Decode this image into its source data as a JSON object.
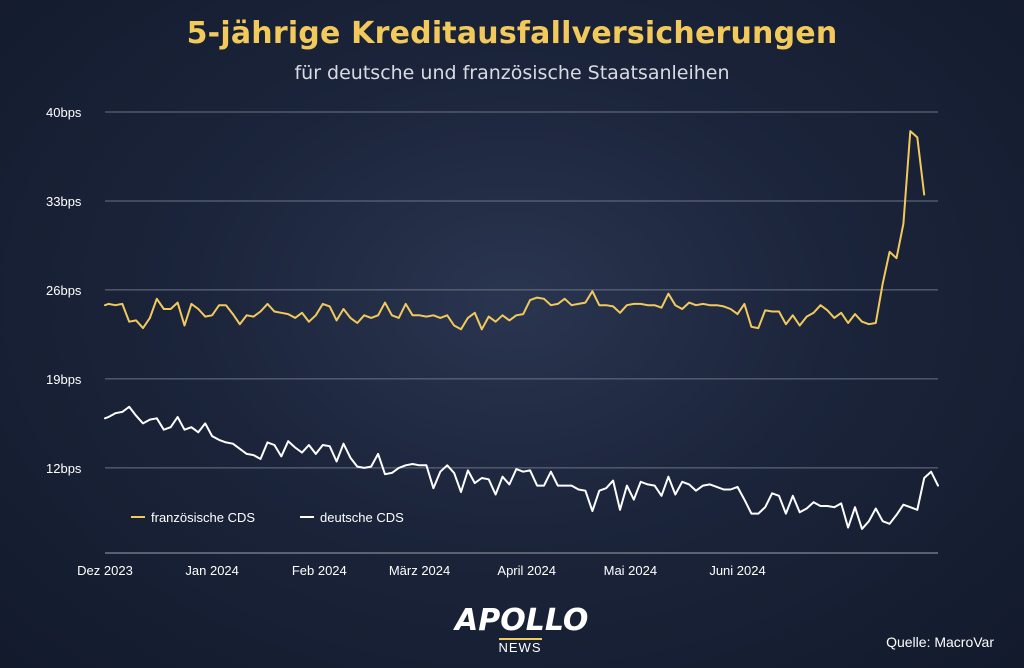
{
  "chart_data": {
    "type": "line",
    "title": "5-jährige Kreditausfallversicherungen",
    "subtitle": "für deutsche und französische Staatsanleihen",
    "x_start": "2023-12-01",
    "x_end": "2024-06-28",
    "x_ticks": [
      {
        "label": "Dez 2023",
        "date": "2023-12-01"
      },
      {
        "label": "Jan 2024",
        "date": "2024-01-01"
      },
      {
        "label": "Feb 2024",
        "date": "2024-02-01"
      },
      {
        "label": "März 2024",
        "date": "2024-03-01"
      },
      {
        "label": "April 2024",
        "date": "2024-04-01"
      },
      {
        "label": "Mai 2024",
        "date": "2024-05-01"
      },
      {
        "label": "Juni 2024",
        "date": "2024-06-01"
      }
    ],
    "y_ticks": [
      {
        "label": "12bps",
        "value": 12
      },
      {
        "label": "19bps",
        "value": 19
      },
      {
        "label": "26bps",
        "value": 26
      },
      {
        "label": "33bps",
        "value": 33
      },
      {
        "label": "40bps",
        "value": 40
      }
    ],
    "ylim": [
      5.3,
      40
    ],
    "grid": true,
    "legend_position": "bottom-left",
    "series": [
      {
        "name": "französische CDS",
        "color": "#f2c95b",
        "values": [
          [
            "2023-12-01",
            24.8
          ],
          [
            "2023-12-02",
            24.9
          ],
          [
            "2023-12-04",
            24.8
          ],
          [
            "2023-12-06",
            24.9
          ],
          [
            "2023-12-08",
            23.5
          ],
          [
            "2023-12-10",
            23.6
          ],
          [
            "2023-12-12",
            23.0
          ],
          [
            "2023-12-14",
            23.8
          ],
          [
            "2023-12-16",
            25.3
          ],
          [
            "2023-12-18",
            24.5
          ],
          [
            "2023-12-20",
            24.5
          ],
          [
            "2023-12-22",
            25.0
          ],
          [
            "2023-12-24",
            23.2
          ],
          [
            "2023-12-26",
            24.9
          ],
          [
            "2023-12-28",
            24.5
          ],
          [
            "2023-12-30",
            23.9
          ],
          [
            "2024-01-01",
            24.0
          ],
          [
            "2024-01-03",
            24.8
          ],
          [
            "2024-01-05",
            24.8
          ],
          [
            "2024-01-07",
            24.1
          ],
          [
            "2024-01-09",
            23.3
          ],
          [
            "2024-01-11",
            24.0
          ],
          [
            "2024-01-13",
            23.9
          ],
          [
            "2024-01-15",
            24.3
          ],
          [
            "2024-01-17",
            24.9
          ],
          [
            "2024-01-19",
            24.3
          ],
          [
            "2024-01-21",
            24.2
          ],
          [
            "2024-01-23",
            24.1
          ],
          [
            "2024-01-25",
            23.8
          ],
          [
            "2024-01-27",
            24.2
          ],
          [
            "2024-01-29",
            23.5
          ],
          [
            "2024-01-31",
            24.0
          ],
          [
            "2024-02-02",
            24.9
          ],
          [
            "2024-02-04",
            24.7
          ],
          [
            "2024-02-06",
            23.6
          ],
          [
            "2024-02-08",
            24.5
          ],
          [
            "2024-02-10",
            23.8
          ],
          [
            "2024-02-12",
            23.4
          ],
          [
            "2024-02-14",
            24.0
          ],
          [
            "2024-02-16",
            23.8
          ],
          [
            "2024-02-18",
            24.0
          ],
          [
            "2024-02-20",
            25.0
          ],
          [
            "2024-02-22",
            24.0
          ],
          [
            "2024-02-24",
            23.8
          ],
          [
            "2024-02-26",
            24.9
          ],
          [
            "2024-02-28",
            24.0
          ],
          [
            "2024-03-01",
            24.0
          ],
          [
            "2024-03-03",
            23.9
          ],
          [
            "2024-03-05",
            24.0
          ],
          [
            "2024-03-07",
            23.8
          ],
          [
            "2024-03-09",
            24.0
          ],
          [
            "2024-03-11",
            23.2
          ],
          [
            "2024-03-13",
            22.9
          ],
          [
            "2024-03-15",
            23.8
          ],
          [
            "2024-03-17",
            24.2
          ],
          [
            "2024-03-19",
            22.9
          ],
          [
            "2024-03-21",
            23.9
          ],
          [
            "2024-03-23",
            23.5
          ],
          [
            "2024-03-25",
            24.0
          ],
          [
            "2024-03-27",
            23.6
          ],
          [
            "2024-03-29",
            24.0
          ],
          [
            "2024-03-31",
            24.1
          ],
          [
            "2024-04-02",
            25.2
          ],
          [
            "2024-04-04",
            25.4
          ],
          [
            "2024-04-06",
            25.3
          ],
          [
            "2024-04-08",
            24.8
          ],
          [
            "2024-04-10",
            24.9
          ],
          [
            "2024-04-12",
            25.3
          ],
          [
            "2024-04-14",
            24.8
          ],
          [
            "2024-04-16",
            24.9
          ],
          [
            "2024-04-18",
            25.0
          ],
          [
            "2024-04-20",
            25.9
          ],
          [
            "2024-04-22",
            24.8
          ],
          [
            "2024-04-24",
            24.8
          ],
          [
            "2024-04-26",
            24.7
          ],
          [
            "2024-04-28",
            24.2
          ],
          [
            "2024-04-30",
            24.8
          ],
          [
            "2024-05-02",
            24.9
          ],
          [
            "2024-05-04",
            24.9
          ],
          [
            "2024-05-06",
            24.8
          ],
          [
            "2024-05-08",
            24.8
          ],
          [
            "2024-05-10",
            24.6
          ],
          [
            "2024-05-12",
            25.7
          ],
          [
            "2024-05-14",
            24.8
          ],
          [
            "2024-05-16",
            24.5
          ],
          [
            "2024-05-18",
            25.0
          ],
          [
            "2024-05-20",
            24.8
          ],
          [
            "2024-05-22",
            24.9
          ],
          [
            "2024-05-24",
            24.8
          ],
          [
            "2024-05-26",
            24.8
          ],
          [
            "2024-05-28",
            24.7
          ],
          [
            "2024-05-30",
            24.5
          ],
          [
            "2024-06-01",
            24.1
          ],
          [
            "2024-06-03",
            24.9
          ],
          [
            "2024-06-05",
            23.1
          ],
          [
            "2024-06-07",
            23.0
          ],
          [
            "2024-06-09",
            24.4
          ],
          [
            "2024-06-11",
            24.3
          ],
          [
            "2024-06-13",
            24.3
          ],
          [
            "2024-06-15",
            23.3
          ],
          [
            "2024-06-17",
            24.0
          ],
          [
            "2024-06-19",
            23.2
          ],
          [
            "2024-06-21",
            23.9
          ],
          [
            "2024-06-23",
            24.2
          ],
          [
            "2024-06-25",
            24.8
          ],
          [
            "2024-06-27",
            24.4
          ],
          [
            "2024-06-29",
            23.8
          ],
          [
            "2024-07-01",
            24.2
          ],
          [
            "2024-07-03",
            23.4
          ],
          [
            "2024-07-05",
            24.1
          ],
          [
            "2024-07-07",
            23.5
          ],
          [
            "2024-07-09",
            23.3
          ],
          [
            "2024-07-11",
            23.4
          ],
          [
            "2024-07-13",
            26.5
          ],
          [
            "2024-07-15",
            29.0
          ],
          [
            "2024-07-17",
            28.5
          ],
          [
            "2024-07-19",
            31.2
          ],
          [
            "2024-07-21",
            38.5
          ],
          [
            "2024-07-23",
            38.0
          ],
          [
            "2024-07-25",
            33.5
          ]
        ]
      },
      {
        "name": "deutsche CDS",
        "color": "#ffffff",
        "values": [
          [
            "2023-12-01",
            15.9
          ],
          [
            "2023-12-02",
            16.0
          ],
          [
            "2023-12-04",
            16.3
          ],
          [
            "2023-12-06",
            16.4
          ],
          [
            "2023-12-08",
            16.8
          ],
          [
            "2023-12-10",
            16.1
          ],
          [
            "2023-12-12",
            15.5
          ],
          [
            "2023-12-14",
            15.8
          ],
          [
            "2023-12-16",
            15.9
          ],
          [
            "2023-12-18",
            15.0
          ],
          [
            "2023-12-20",
            15.2
          ],
          [
            "2023-12-22",
            16.0
          ],
          [
            "2023-12-24",
            15.0
          ],
          [
            "2023-12-26",
            15.2
          ],
          [
            "2023-12-28",
            14.8
          ],
          [
            "2023-12-30",
            15.5
          ],
          [
            "2024-01-01",
            14.5
          ],
          [
            "2024-01-03",
            14.2
          ],
          [
            "2024-01-05",
            14.0
          ],
          [
            "2024-01-07",
            13.9
          ],
          [
            "2024-01-09",
            13.5
          ],
          [
            "2024-01-11",
            13.1
          ],
          [
            "2024-01-13",
            13.0
          ],
          [
            "2024-01-15",
            12.7
          ],
          [
            "2024-01-17",
            14.0
          ],
          [
            "2024-01-19",
            13.8
          ],
          [
            "2024-01-21",
            12.9
          ],
          [
            "2024-01-23",
            14.1
          ],
          [
            "2024-01-25",
            13.6
          ],
          [
            "2024-01-27",
            13.2
          ],
          [
            "2024-01-29",
            13.8
          ],
          [
            "2024-01-31",
            13.1
          ],
          [
            "2024-02-02",
            13.8
          ],
          [
            "2024-02-04",
            13.7
          ],
          [
            "2024-02-06",
            12.5
          ],
          [
            "2024-02-08",
            13.9
          ],
          [
            "2024-02-10",
            12.8
          ],
          [
            "2024-02-12",
            12.1
          ],
          [
            "2024-02-14",
            12.0
          ],
          [
            "2024-02-16",
            12.1
          ],
          [
            "2024-02-18",
            13.1
          ],
          [
            "2024-02-20",
            11.5
          ],
          [
            "2024-02-22",
            11.6
          ],
          [
            "2024-02-24",
            12.0
          ],
          [
            "2024-02-26",
            12.2
          ],
          [
            "2024-02-28",
            12.3
          ],
          [
            "2024-03-01",
            12.2
          ],
          [
            "2024-03-03",
            12.2
          ],
          [
            "2024-03-05",
            10.4
          ],
          [
            "2024-03-07",
            11.7
          ],
          [
            "2024-03-09",
            12.2
          ],
          [
            "2024-03-11",
            11.6
          ],
          [
            "2024-03-13",
            10.1
          ],
          [
            "2024-03-15",
            11.8
          ],
          [
            "2024-03-17",
            10.8
          ],
          [
            "2024-03-19",
            11.2
          ],
          [
            "2024-03-21",
            11.1
          ],
          [
            "2024-03-23",
            9.9
          ],
          [
            "2024-03-25",
            11.3
          ],
          [
            "2024-03-27",
            10.7
          ],
          [
            "2024-03-29",
            11.9
          ],
          [
            "2024-03-31",
            11.7
          ],
          [
            "2024-04-02",
            11.8
          ],
          [
            "2024-04-04",
            10.6
          ],
          [
            "2024-04-06",
            10.6
          ],
          [
            "2024-04-08",
            11.7
          ],
          [
            "2024-04-10",
            10.6
          ],
          [
            "2024-04-12",
            10.6
          ],
          [
            "2024-04-14",
            10.6
          ],
          [
            "2024-04-16",
            10.3
          ],
          [
            "2024-04-18",
            10.2
          ],
          [
            "2024-04-20",
            8.6
          ],
          [
            "2024-04-22",
            10.2
          ],
          [
            "2024-04-24",
            10.4
          ],
          [
            "2024-04-26",
            11.0
          ],
          [
            "2024-04-28",
            8.7
          ],
          [
            "2024-04-30",
            10.6
          ],
          [
            "2024-05-02",
            9.5
          ],
          [
            "2024-05-04",
            10.9
          ],
          [
            "2024-05-06",
            10.7
          ],
          [
            "2024-05-08",
            10.6
          ],
          [
            "2024-05-10",
            9.8
          ],
          [
            "2024-05-12",
            11.3
          ],
          [
            "2024-05-14",
            9.9
          ],
          [
            "2024-05-16",
            10.9
          ],
          [
            "2024-05-18",
            10.7
          ],
          [
            "2024-05-20",
            10.2
          ],
          [
            "2024-05-22",
            10.6
          ],
          [
            "2024-05-24",
            10.7
          ],
          [
            "2024-05-26",
            10.5
          ],
          [
            "2024-05-28",
            10.3
          ],
          [
            "2024-05-30",
            10.3
          ],
          [
            "2024-06-01",
            10.5
          ],
          [
            "2024-06-03",
            9.5
          ],
          [
            "2024-06-05",
            8.4
          ],
          [
            "2024-06-07",
            8.4
          ],
          [
            "2024-06-09",
            8.9
          ],
          [
            "2024-06-11",
            10.0
          ],
          [
            "2024-06-13",
            9.8
          ],
          [
            "2024-06-15",
            8.4
          ],
          [
            "2024-06-17",
            9.8
          ],
          [
            "2024-06-19",
            8.5
          ],
          [
            "2024-06-21",
            8.8
          ],
          [
            "2024-06-23",
            9.3
          ],
          [
            "2024-06-25",
            9.0
          ],
          [
            "2024-06-27",
            9.0
          ],
          [
            "2024-06-29",
            8.9
          ],
          [
            "2024-07-01",
            9.2
          ],
          [
            "2024-07-03",
            7.3
          ],
          [
            "2024-07-05",
            8.9
          ],
          [
            "2024-07-07",
            7.2
          ],
          [
            "2024-07-09",
            7.8
          ],
          [
            "2024-07-11",
            8.8
          ],
          [
            "2024-07-13",
            7.8
          ],
          [
            "2024-07-15",
            7.6
          ],
          [
            "2024-07-17",
            8.3
          ],
          [
            "2024-07-19",
            9.1
          ],
          [
            "2024-07-21",
            8.9
          ],
          [
            "2024-07-23",
            8.7
          ],
          [
            "2024-07-25",
            11.2
          ],
          [
            "2024-07-27",
            11.7
          ],
          [
            "2024-07-29",
            10.6
          ]
        ]
      }
    ]
  },
  "source_label": "Quelle: MacroVar",
  "logo": {
    "main": "APOLLO",
    "sub": "NEWS"
  }
}
